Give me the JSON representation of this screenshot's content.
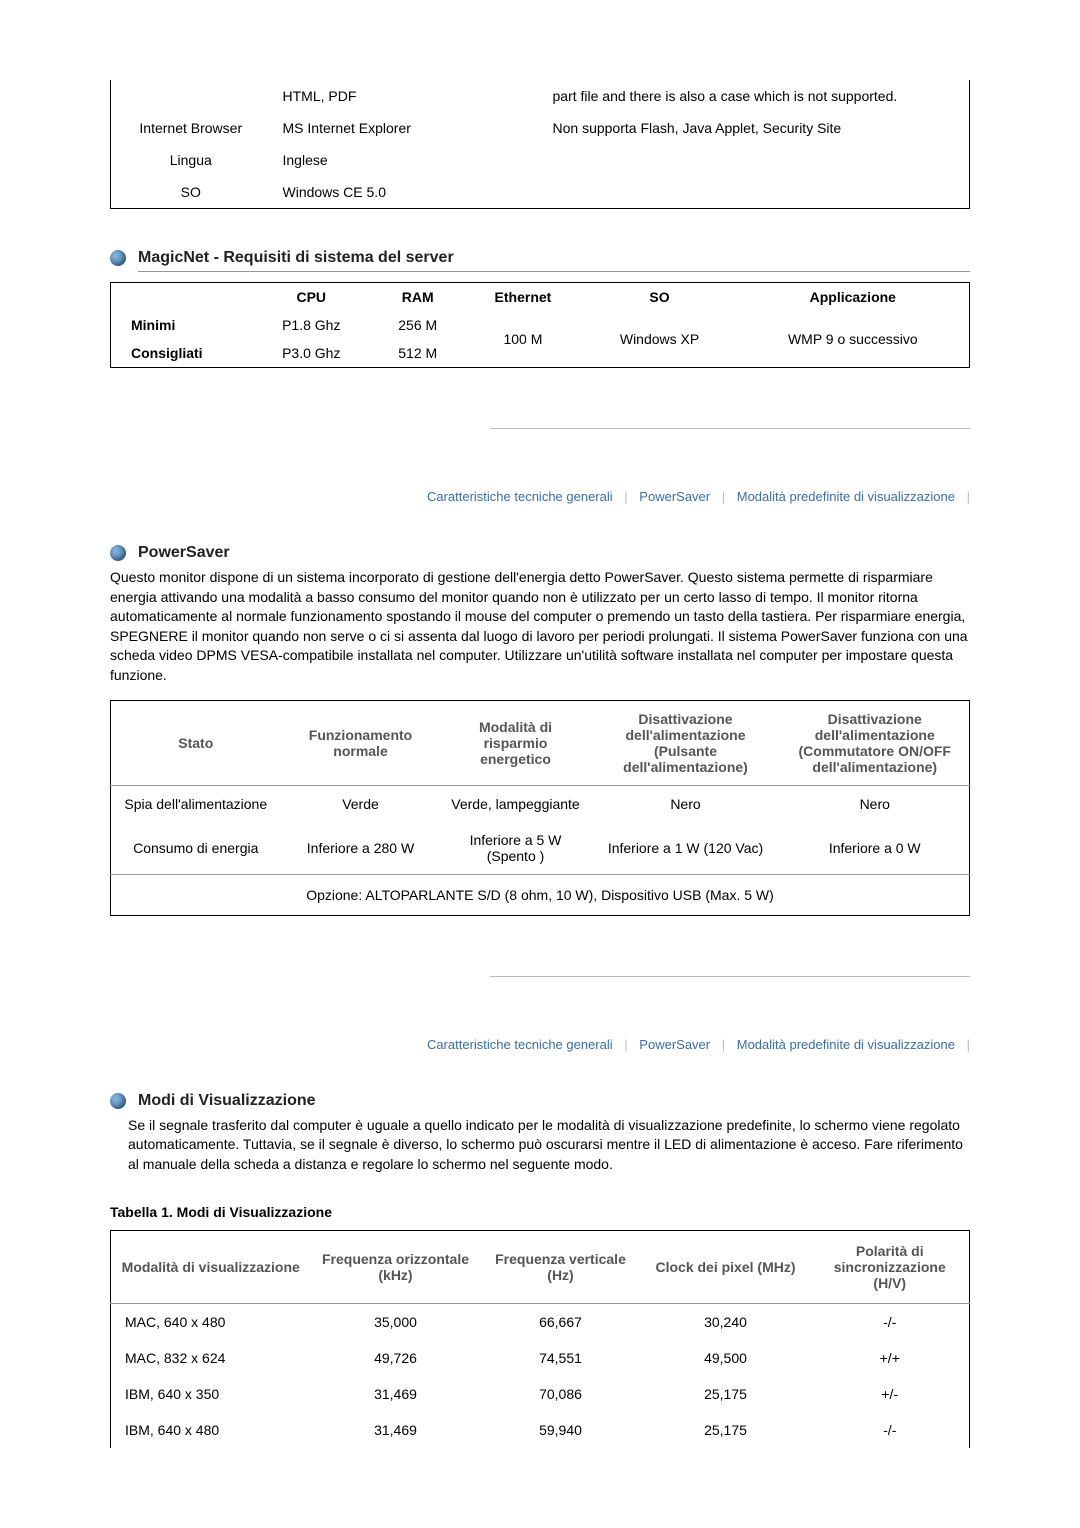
{
  "topTable": {
    "r1": {
      "c2": "HTML, PDF",
      "c3": "part file and there is also a case which is not supported."
    },
    "r2": {
      "c1": "Internet Browser",
      "c2": "MS Internet Explorer",
      "c3": "Non supporta Flash, Java Applet, Security Site"
    },
    "r3": {
      "c1": "Lingua",
      "c2": "Inglese"
    },
    "r4": {
      "c1": "SO",
      "c2": "Windows CE 5.0"
    }
  },
  "magicnet": {
    "title": "MagicNet - Requisiti di sistema del server",
    "headers": {
      "cpu": "CPU",
      "ram": "RAM",
      "eth": "Ethernet",
      "so": "SO",
      "app": "Applicazione"
    },
    "rowlabels": {
      "min": "Minimi",
      "rec": "Consigliati"
    },
    "min": {
      "cpu": "P1.8 Ghz",
      "ram": "256 M"
    },
    "rec": {
      "cpu": "P3.0 Ghz",
      "ram": "512 M"
    },
    "shared": {
      "eth": "100 M",
      "so": "Windows XP",
      "app": "WMP 9 o successivo"
    }
  },
  "nav1": {
    "a": "Caratteristiche tecniche generali",
    "b": "PowerSaver",
    "c": "Modalità predefinite di visualizzazione"
  },
  "powersaver": {
    "title": "PowerSaver",
    "text": "Questo monitor dispone di un sistema incorporato di gestione dell'energia detto PowerSaver. Questo sistema permette di risparmiare energia attivando una modalità a basso consumo del monitor quando non è utilizzato per un certo lasso di tempo. Il monitor ritorna automaticamente al normale funzionamento spostando il mouse del computer o premendo un tasto della tastiera. Per risparmiare energia, SPEGNERE il monitor quando non serve o ci si assenta dal luogo di lavoro per periodi prolungati. Il sistema PowerSaver funziona con una scheda video DPMS VESA-compatibile installata nel computer. Utilizzare un'utilità software installata nel computer per impostare questa funzione.",
    "headers": {
      "stato": "Stato",
      "norm": "Funzionamento normale",
      "risp": "Modalità di risparmio energetico",
      "offbtn": "Disattivazione dell'alimentazione (Pulsante dell'alimentazione)",
      "offsw": "Disattivazione dell'alimentazione (Commutatore ON/OFF dell'alimentazione)"
    },
    "rows": {
      "spia": {
        "label": "Spia dell'alimentazione",
        "norm": "Verde",
        "risp": "Verde, lampeggiante",
        "offbtn": "Nero",
        "offsw": "Nero"
      },
      "cons": {
        "label": "Consumo di energia",
        "norm": "Inferiore a 280 W",
        "risp": "Inferiore a 5 W (Spento )",
        "offbtn": "Inferiore a 1 W (120 Vac)",
        "offsw": "Inferiore a 0 W"
      }
    },
    "footer": "Opzione: ALTOPARLANTE S/D (8 ohm, 10 W), Dispositivo USB (Max. 5 W)"
  },
  "nav2": {
    "a": "Caratteristiche tecniche generali",
    "b": "PowerSaver",
    "c": "Modalità predefinite di visualizzazione"
  },
  "modes": {
    "title": "Modi di Visualizzazione",
    "text": "Se il segnale trasferito dal computer è uguale a quello indicato per le modalità di visualizzazione predefinite, lo schermo viene regolato automaticamente. Tuttavia, se il segnale è diverso, lo schermo può oscurarsi mentre il LED di alimentazione è acceso. Fare riferimento al manuale della scheda a distanza e regolare lo schermo nel seguente modo.",
    "tableTitle": "Tabella 1. Modi di Visualizzazione",
    "headers": {
      "mode": "Modalità di visualizzazione",
      "hfreq": "Frequenza orizzontale (kHz)",
      "vfreq": "Frequenza verticale (Hz)",
      "pclock": "Clock dei pixel (MHz)",
      "pol": "Polarità di sincronizzazione (H/V)"
    },
    "rows": [
      {
        "mode": "MAC, 640 x 480",
        "h": "35,000",
        "v": "66,667",
        "p": "30,240",
        "pol": "-/-"
      },
      {
        "mode": "MAC, 832 x 624",
        "h": "49,726",
        "v": "74,551",
        "p": "49,500",
        "pol": "+/+"
      },
      {
        "mode": "IBM, 640 x 350",
        "h": "31,469",
        "v": "70,086",
        "p": "25,175",
        "pol": "+/-"
      },
      {
        "mode": "IBM, 640 x 480",
        "h": "31,469",
        "v": "59,940",
        "p": "25,175",
        "pol": "-/-"
      }
    ]
  }
}
